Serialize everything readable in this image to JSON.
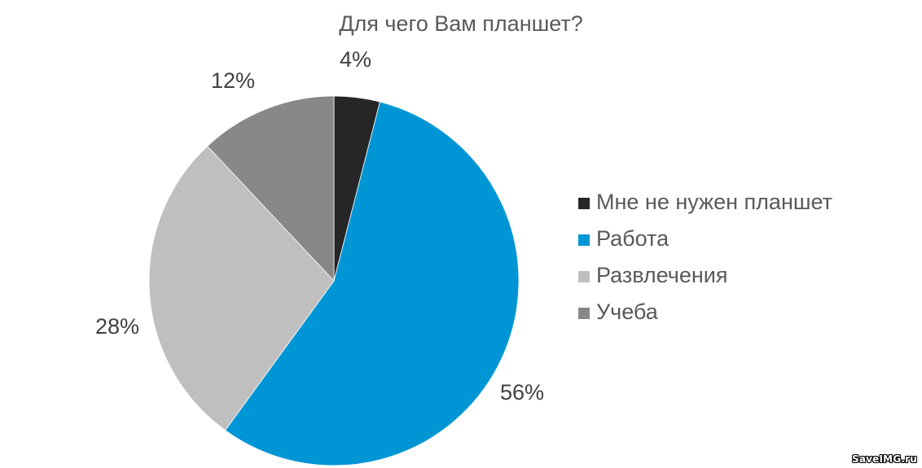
{
  "chart_data": {
    "type": "pie",
    "title": "Для чего Вам планшет?",
    "categories": [
      "Мне не нужен планшет",
      "Работа",
      "Развлечения",
      "Учеба"
    ],
    "values": [
      4,
      56,
      28,
      12
    ],
    "labels": [
      "4%",
      "56%",
      "28%",
      "12%"
    ],
    "colors": [
      "#262626",
      "#0096D6",
      "#BFBFBF",
      "#87888A"
    ],
    "start_angle": "12 o'clock",
    "direction": "clockwise",
    "legend_position": "right",
    "unit": "%"
  },
  "title": "Для чего Вам планшет?",
  "slices": [
    {
      "name": "Мне не нужен планшет",
      "value": 4,
      "label": "4%",
      "color": "#262626"
    },
    {
      "name": "Работа",
      "value": 56,
      "label": "56%",
      "color": "#0096D6"
    },
    {
      "name": "Развлечения",
      "value": 28,
      "label": "28%",
      "color": "#BFBFBF"
    },
    {
      "name": "Учеба",
      "value": 12,
      "label": "12%",
      "color": "#87888A"
    }
  ],
  "legend": {
    "items": [
      {
        "label": "Мне не нужен планшет",
        "color": "#262626"
      },
      {
        "label": "Работа",
        "color": "#0096D6"
      },
      {
        "label": "Развлечения",
        "color": "#BFBFBF"
      },
      {
        "label": "Учеба",
        "color": "#87888A"
      }
    ]
  },
  "watermark": "SaveIMG.ru"
}
